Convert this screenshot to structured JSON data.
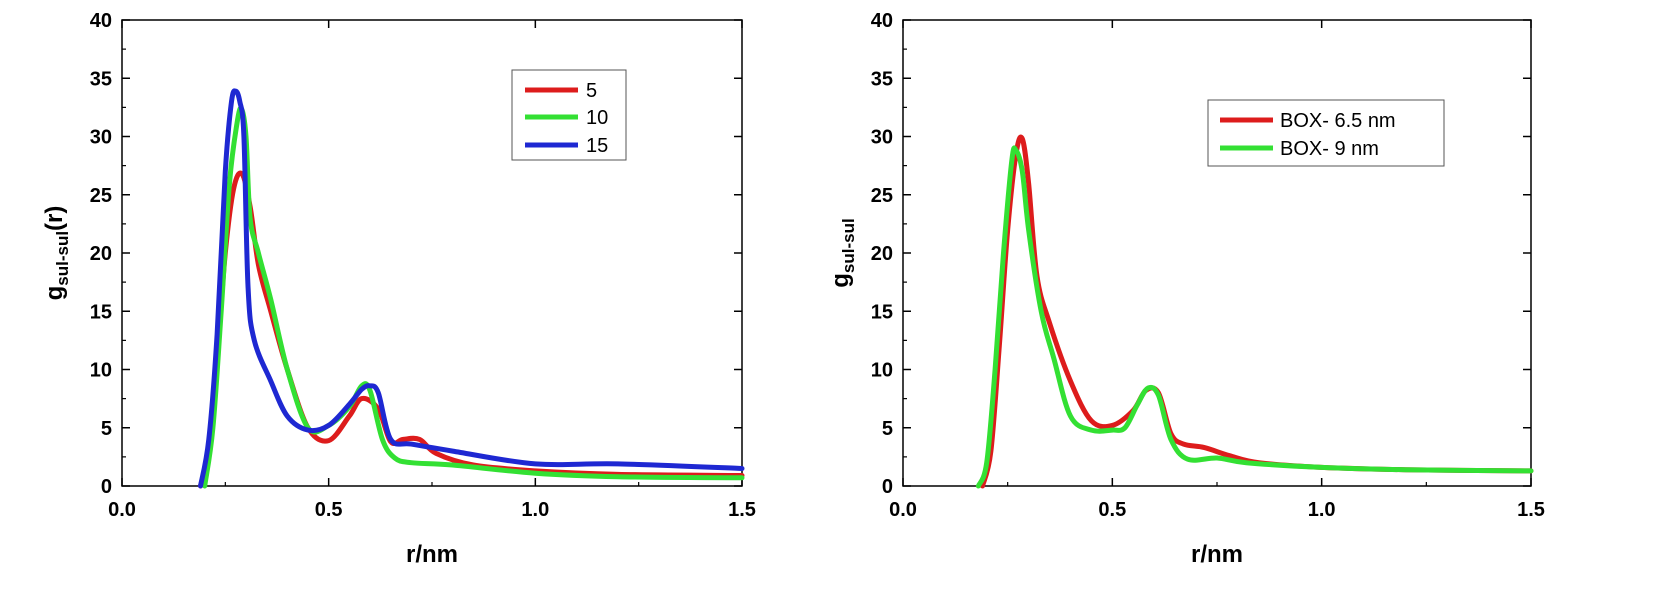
{
  "chart_data": [
    {
      "type": "line",
      "xlabel": "r/nm",
      "ylabel_main": "g",
      "ylabel_sub": "sul-sul",
      "ylabel_tail": "(r)",
      "xlim": [
        0.0,
        1.5
      ],
      "ylim": [
        0,
        40
      ],
      "xticks": [
        "0.0",
        "0.5",
        "1.0",
        "1.5"
      ],
      "yticks": [
        "0",
        "5",
        "10",
        "15",
        "20",
        "25",
        "30",
        "35",
        "40"
      ],
      "grid": false,
      "legend_position": "top-right",
      "series": [
        {
          "name": "5",
          "color": "#dd1c1c",
          "x": [
            0.19,
            0.21,
            0.23,
            0.25,
            0.27,
            0.29,
            0.31,
            0.33,
            0.36,
            0.4,
            0.45,
            0.5,
            0.55,
            0.58,
            0.62,
            0.65,
            0.68,
            0.72,
            0.76,
            0.85,
            1.0,
            1.2,
            1.5
          ],
          "y": [
            0,
            3,
            11,
            20,
            25.5,
            26.8,
            24,
            19,
            15,
            10,
            5,
            3.9,
            6,
            7.5,
            6.6,
            3.8,
            4.0,
            4.0,
            2.8,
            1.8,
            1.3,
            1.0,
            0.9
          ]
        },
        {
          "name": "10",
          "color": "#33e033",
          "x": [
            0.2,
            0.22,
            0.24,
            0.26,
            0.28,
            0.29,
            0.3,
            0.31,
            0.33,
            0.36,
            0.4,
            0.45,
            0.5,
            0.55,
            0.58,
            0.6,
            0.63,
            0.66,
            0.7,
            0.8,
            1.0,
            1.2,
            1.5
          ],
          "y": [
            0,
            5,
            15,
            26,
            31.5,
            32.3,
            30,
            23,
            20,
            16,
            10,
            5,
            5.2,
            6.8,
            8.6,
            8.2,
            4,
            2.4,
            2.0,
            1.8,
            1.1,
            0.8,
            0.7
          ]
        },
        {
          "name": "15",
          "color": "#1e28d2",
          "x": [
            0.19,
            0.21,
            0.23,
            0.25,
            0.265,
            0.275,
            0.285,
            0.295,
            0.305,
            0.32,
            0.36,
            0.4,
            0.45,
            0.5,
            0.55,
            0.58,
            0.6,
            0.62,
            0.65,
            0.7,
            0.8,
            1.0,
            1.2,
            1.5
          ],
          "y": [
            0,
            4,
            13,
            27,
            33,
            33.9,
            33,
            30,
            17,
            12.5,
            9,
            6,
            4.8,
            5.2,
            7,
            8.3,
            8.6,
            8,
            4,
            3.6,
            3.0,
            1.9,
            1.9,
            1.5
          ]
        }
      ]
    },
    {
      "type": "line",
      "xlabel": "r/nm",
      "ylabel_main": "g",
      "ylabel_sub": "sul-sul",
      "ylabel_tail": "",
      "xlim": [
        0.0,
        1.5
      ],
      "ylim": [
        0,
        40
      ],
      "xticks": [
        "0.0",
        "0.5",
        "1.0",
        "1.5"
      ],
      "yticks": [
        "0",
        "5",
        "10",
        "15",
        "20",
        "25",
        "30",
        "35",
        "40"
      ],
      "grid": false,
      "legend_position": "top-right",
      "series": [
        {
          "name": "BOX- 6.5 nm",
          "color": "#dd1c1c",
          "x": [
            0.19,
            0.21,
            0.23,
            0.25,
            0.27,
            0.285,
            0.3,
            0.32,
            0.35,
            0.4,
            0.45,
            0.5,
            0.55,
            0.58,
            0.61,
            0.64,
            0.67,
            0.72,
            0.78,
            0.85,
            1.0,
            1.2,
            1.5
          ],
          "y": [
            0,
            3,
            12,
            22,
            28.5,
            29.8,
            26,
            18,
            14,
            9,
            5.6,
            5.2,
            6.5,
            8.2,
            8.0,
            4.5,
            3.6,
            3.3,
            2.6,
            2.0,
            1.6,
            1.4,
            1.3
          ]
        },
        {
          "name": "BOX- 9 nm",
          "color": "#33e033",
          "x": [
            0.18,
            0.2,
            0.22,
            0.24,
            0.26,
            0.27,
            0.285,
            0.3,
            0.33,
            0.36,
            0.4,
            0.45,
            0.5,
            0.53,
            0.56,
            0.585,
            0.61,
            0.64,
            0.68,
            0.75,
            0.82,
            1.0,
            1.2,
            1.5
          ],
          "y": [
            0,
            2,
            10,
            20,
            28,
            28.8,
            27,
            22,
            15,
            11,
            6,
            4.8,
            4.8,
            5.0,
            7,
            8.4,
            7.8,
            4,
            2.3,
            2.4,
            2.0,
            1.6,
            1.4,
            1.3
          ]
        }
      ]
    }
  ]
}
